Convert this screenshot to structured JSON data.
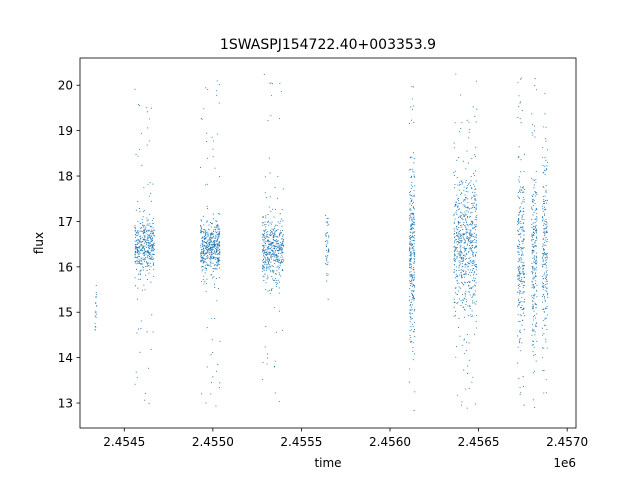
{
  "chart_data": {
    "type": "scatter",
    "title": "1SWASPJ154722.40+003353.9",
    "xlabel": "time",
    "ylabel": "flux",
    "x_offset_label": "1e6",
    "xlim": [
      2.45425,
      2.45705
    ],
    "ylim": [
      12.45,
      20.6
    ],
    "x_ticks": [
      2.4545,
      2.455,
      2.4555,
      2.456,
      2.4565,
      2.457
    ],
    "x_tick_labels": [
      "2.4545",
      "2.4550",
      "2.4555",
      "2.4560",
      "2.4565",
      "2.4570"
    ],
    "y_ticks": [
      13,
      14,
      15,
      16,
      17,
      18,
      19,
      20
    ],
    "y_tick_labels": [
      "13",
      "14",
      "15",
      "16",
      "17",
      "18",
      "19",
      "20"
    ],
    "marker_color": "#1f77b4",
    "grid": false,
    "legend": "none",
    "clusters": [
      {
        "x_range": [
          2.454335,
          2.454345
        ],
        "y_center": 15.1,
        "y_spread": 0.35,
        "y_min": 14.45,
        "y_max": 15.75,
        "count": 20
      },
      {
        "x_range": [
          2.45456,
          2.45467
        ],
        "y_center": 16.45,
        "y_spread": 0.3,
        "y_min": 12.8,
        "y_max": 20.05,
        "count": 420
      },
      {
        "x_range": [
          2.45493,
          2.45504
        ],
        "y_center": 16.4,
        "y_spread": 0.32,
        "y_min": 12.85,
        "y_max": 20.2,
        "count": 480
      },
      {
        "x_range": [
          2.45528,
          2.4554
        ],
        "y_center": 16.4,
        "y_spread": 0.35,
        "y_min": 12.9,
        "y_max": 20.25,
        "count": 460
      },
      {
        "x_range": [
          2.455635,
          2.455655
        ],
        "y_center": 16.5,
        "y_spread": 0.3,
        "y_min": 14.3,
        "y_max": 17.35,
        "count": 45
      },
      {
        "x_range": [
          2.45611,
          2.45614
        ],
        "y_center": 16.3,
        "y_spread": 1.0,
        "y_min": 12.75,
        "y_max": 20.2,
        "count": 300
      },
      {
        "x_range": [
          2.45636,
          2.45649
        ],
        "y_center": 16.5,
        "y_spread": 0.75,
        "y_min": 12.8,
        "y_max": 20.25,
        "count": 650
      },
      {
        "x_range": [
          2.45672,
          2.45676
        ],
        "y_center": 16.3,
        "y_spread": 1.0,
        "y_min": 12.8,
        "y_max": 20.25,
        "count": 260
      },
      {
        "x_range": [
          2.4568,
          2.45683
        ],
        "y_center": 16.3,
        "y_spread": 1.1,
        "y_min": 12.9,
        "y_max": 20.2,
        "count": 220
      },
      {
        "x_range": [
          2.45686,
          2.45689
        ],
        "y_center": 16.5,
        "y_spread": 1.0,
        "y_min": 12.85,
        "y_max": 20.0,
        "count": 200
      }
    ]
  }
}
